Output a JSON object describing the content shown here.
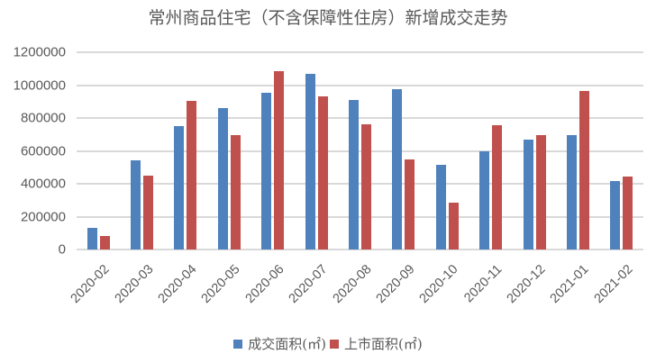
{
  "chart_data": {
    "type": "bar",
    "title": "常州商品住宅（不含保障性住房）新增成交走势",
    "xlabel": "",
    "ylabel": "",
    "ylim": [
      0,
      1200000
    ],
    "yticks": [
      "0",
      "200000",
      "400000",
      "600000",
      "800000",
      "1000000",
      "1200000"
    ],
    "grid": true,
    "legend_position": "bottom",
    "categories": [
      "2020-02",
      "2020-03",
      "2020-04",
      "2020-05",
      "2020-06",
      "2020-07",
      "2020-08",
      "2020-09",
      "2020-10",
      "2020-11",
      "2020-12",
      "2021-01",
      "2021-02"
    ],
    "series": [
      {
        "name": "成交面积(㎡)",
        "color": "#4F81BD",
        "values": [
          131000,
          542000,
          750000,
          859000,
          952000,
          1067000,
          908000,
          974000,
          515000,
          597000,
          668000,
          695000,
          416000
        ]
      },
      {
        "name": "上市面积(㎡)",
        "color": "#C0504D",
        "values": [
          82000,
          447000,
          903000,
          695000,
          1084000,
          930000,
          761000,
          547000,
          285000,
          755000,
          695000,
          963000,
          443000
        ]
      }
    ]
  }
}
